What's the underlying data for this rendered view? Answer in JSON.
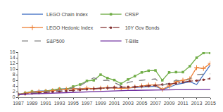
{
  "chart_data": {
    "type": "line",
    "x": [
      1987,
      1988,
      1989,
      1990,
      1991,
      1992,
      1993,
      1994,
      1995,
      1996,
      1997,
      1998,
      1999,
      2000,
      2001,
      2002,
      2003,
      2004,
      2005,
      2006,
      2007,
      2008,
      2009,
      2010,
      2011,
      2012,
      2013,
      2014,
      2015
    ],
    "series": [
      {
        "name": "LEGO Chain Index",
        "color": "#4472c4",
        "line_style": "solid",
        "values": [
          1.0,
          1.5,
          1.9,
          2.2,
          2.2,
          2.5,
          2.8,
          3.1,
          3.1,
          3.0,
          3.1,
          3.0,
          3.3,
          3.4,
          3.3,
          3.2,
          3.3,
          3.5,
          3.6,
          3.7,
          3.9,
          2.8,
          3.5,
          4.5,
          5.0,
          5.5,
          4.5,
          8.0,
          11.5
        ]
      },
      {
        "name": "CRSP",
        "color": "#70ad47",
        "line_style": "solid",
        "marker": "square",
        "values": [
          1.0,
          1.5,
          2.0,
          1.6,
          2.2,
          2.5,
          3.0,
          2.8,
          3.8,
          4.5,
          5.8,
          6.0,
          8.0,
          6.8,
          6.1,
          4.8,
          6.3,
          7.5,
          8.8,
          9.4,
          9.5,
          6.0,
          8.8,
          8.9,
          8.9,
          11.0,
          14.0,
          15.7,
          15.7
        ]
      },
      {
        "name": "LEGO Hedonic Index",
        "color": "#ed7d31",
        "line_style": "solid",
        "marker": "cross",
        "values": [
          1.0,
          1.4,
          1.8,
          2.0,
          2.1,
          2.3,
          2.7,
          2.8,
          3.0,
          2.9,
          3.2,
          3.0,
          3.2,
          3.4,
          3.3,
          3.1,
          3.3,
          3.6,
          4.0,
          4.3,
          4.4,
          2.8,
          4.0,
          5.5,
          6.0,
          6.5,
          10.5,
          10.2,
          12.0
        ]
      },
      {
        "name": "10Y Gov Bonds",
        "color": "#833232",
        "line_style": "dashdot",
        "marker": "circle",
        "values": [
          1.0,
          1.1,
          1.3,
          1.5,
          1.7,
          1.9,
          2.0,
          2.2,
          2.4,
          2.6,
          2.8,
          3.0,
          3.1,
          3.3,
          3.5,
          3.6,
          3.6,
          3.7,
          3.8,
          4.0,
          4.2,
          4.5,
          4.7,
          4.9,
          5.3,
          5.7,
          5.9,
          6.2,
          6.6
        ]
      },
      {
        "name": "S&P500",
        "color": "#808080",
        "line_style": "dash",
        "values": [
          1.0,
          1.2,
          1.6,
          1.5,
          2.0,
          2.2,
          2.5,
          2.5,
          3.4,
          4.1,
          5.4,
          6.9,
          5.9,
          6.0,
          5.2,
          4.0,
          5.2,
          5.8,
          6.0,
          6.2,
          6.5,
          4.2,
          5.2,
          6.0,
          5.7,
          6.5,
          8.0,
          8.2,
          8.3
        ]
      },
      {
        "name": "T-Bills",
        "color": "#7030a0",
        "line_style": "solid",
        "values": [
          1.0,
          1.1,
          1.2,
          1.3,
          1.4,
          1.5,
          1.6,
          1.7,
          1.8,
          1.9,
          2.0,
          2.1,
          2.2,
          2.3,
          2.35,
          2.4,
          2.42,
          2.44,
          2.5,
          2.55,
          2.6,
          2.62,
          2.63,
          2.64,
          2.65,
          2.66,
          2.67,
          2.68,
          2.7
        ]
      }
    ],
    "xlim": [
      1987,
      2015
    ],
    "xticks": [
      1987,
      1989,
      1991,
      1993,
      1995,
      1997,
      1999,
      2001,
      2003,
      2005,
      2007,
      2009,
      2011,
      2013,
      2015
    ],
    "ylim": [
      0,
      16
    ],
    "yticks": [
      0,
      2,
      4,
      6,
      8,
      10,
      12,
      14,
      16
    ],
    "grid": false,
    "legend": "top"
  }
}
